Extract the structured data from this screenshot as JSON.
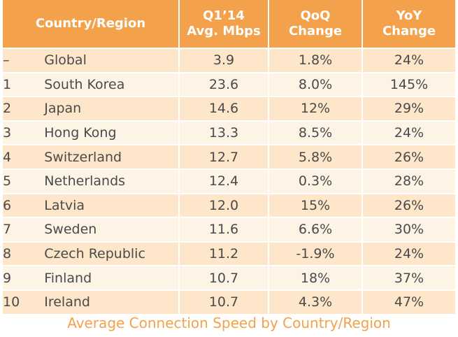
{
  "chart_data": {
    "type": "table",
    "title": "Average Connection Speed by Country/Region",
    "columns": [
      "Country/Region",
      "Q1’14\nAvg. Mbps",
      "QoQ\nChange",
      "YoY\nChange"
    ],
    "rows": [
      {
        "rank": "–",
        "country": "Global",
        "avg_mbps": "3.9",
        "qoq": "1.8%",
        "yoy": "24%"
      },
      {
        "rank": "1",
        "country": "South Korea",
        "avg_mbps": "23.6",
        "qoq": "8.0%",
        "yoy": "145%"
      },
      {
        "rank": "2",
        "country": "Japan",
        "avg_mbps": "14.6",
        "qoq": "12%",
        "yoy": "29%"
      },
      {
        "rank": "3",
        "country": "Hong Kong",
        "avg_mbps": "13.3",
        "qoq": "8.5%",
        "yoy": "24%"
      },
      {
        "rank": "4",
        "country": "Switzerland",
        "avg_mbps": "12.7",
        "qoq": "5.8%",
        "yoy": "26%"
      },
      {
        "rank": "5",
        "country": "Netherlands",
        "avg_mbps": "12.4",
        "qoq": "0.3%",
        "yoy": "28%"
      },
      {
        "rank": "6",
        "country": "Latvia",
        "avg_mbps": "12.0",
        "qoq": "15%",
        "yoy": "26%"
      },
      {
        "rank": "7",
        "country": "Sweden",
        "avg_mbps": "11.6",
        "qoq": "6.6%",
        "yoy": "30%"
      },
      {
        "rank": "8",
        "country": "Czech Republic",
        "avg_mbps": "11.2",
        "qoq": "-1.9%",
        "yoy": "24%"
      },
      {
        "rank": "9",
        "country": "Finland",
        "avg_mbps": "10.7",
        "qoq": "18%",
        "yoy": "37%"
      },
      {
        "rank": "10",
        "country": "Ireland",
        "avg_mbps": "10.7",
        "qoq": "4.3%",
        "yoy": "47%"
      }
    ]
  },
  "colors": {
    "header_bg": "#f3a14b",
    "row_odd": "#fde6c9",
    "row_even": "#fef4e6",
    "caption": "#f3a14b"
  }
}
